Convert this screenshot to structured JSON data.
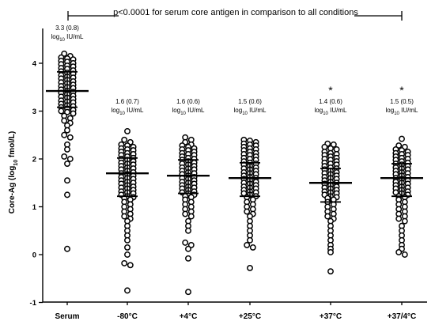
{
  "chart_data": {
    "type": "scatter",
    "title": "",
    "ylabel_main": "Core-Ag (log",
    "ylabel_sub": "10",
    "ylabel_unit": " fmol/L)",
    "ylim": [
      -1,
      4.3
    ],
    "yticks": [
      "-1",
      "0",
      "1",
      "2",
      "3",
      "4"
    ],
    "categories": [
      "Serum",
      "-80°C",
      "+4°C",
      "+25°C",
      "+37°C",
      "+37/4°C"
    ],
    "significance_text": "p<0.0001 for serum core antigen in comparison to all conditions",
    "annotations": [
      {
        "line1": "3.3 (0.8)",
        "log": "log",
        "sub": "10",
        "unit": " IU/mL",
        "star": ""
      },
      {
        "line1": "1.6 (0.7)",
        "log": "log",
        "sub": "10",
        "unit": " IU/mL",
        "star": ""
      },
      {
        "line1": "1.6 (0.6)",
        "log": "log",
        "sub": "10",
        "unit": " IU/mL",
        "star": ""
      },
      {
        "line1": "1.5 (0.6)",
        "log": "log",
        "sub": "10",
        "unit": " IU/mL",
        "star": ""
      },
      {
        "line1": "1.4 (0.6)",
        "log": "log",
        "sub": "10",
        "unit": " IU/mL",
        "star": "*"
      },
      {
        "line1": "1.5 (0.5)",
        "log": "log",
        "sub": "10",
        "unit": " IU/mL",
        "star": "*"
      }
    ],
    "summary": [
      {
        "median": 3.42,
        "q1": 3.08,
        "q3": 3.82
      },
      {
        "median": 1.7,
        "q1": 1.22,
        "q3": 2.02
      },
      {
        "median": 1.65,
        "q1": 1.28,
        "q3": 1.98
      },
      {
        "median": 1.6,
        "q1": 1.22,
        "q3": 1.92
      },
      {
        "median": 1.5,
        "q1": 1.1,
        "q3": 1.8
      },
      {
        "median": 1.6,
        "q1": 1.22,
        "q3": 1.9
      }
    ],
    "series": [
      {
        "values": [
          4.2,
          4.15,
          4.12,
          4.1,
          4.08,
          4.05,
          4.03,
          4.0,
          3.98,
          3.95,
          3.93,
          3.9,
          3.88,
          3.85,
          3.83,
          3.8,
          3.78,
          3.75,
          3.72,
          3.7,
          3.68,
          3.65,
          3.62,
          3.6,
          3.58,
          3.55,
          3.52,
          3.5,
          3.48,
          3.45,
          3.42,
          3.4,
          3.38,
          3.35,
          3.32,
          3.3,
          3.28,
          3.25,
          3.22,
          3.2,
          3.18,
          3.15,
          3.12,
          3.1,
          3.08,
          3.05,
          3.02,
          3.0,
          2.98,
          2.95,
          2.9,
          2.85,
          2.8,
          2.75,
          2.7,
          2.6,
          2.5,
          2.45,
          2.3,
          2.2,
          2.05,
          2.0,
          1.9,
          1.55,
          1.25,
          0.12
        ]
      },
      {
        "values": [
          2.58,
          2.4,
          2.35,
          2.3,
          2.28,
          2.25,
          2.22,
          2.2,
          2.18,
          2.15,
          2.12,
          2.1,
          2.08,
          2.05,
          2.02,
          2.0,
          1.98,
          1.95,
          1.92,
          1.9,
          1.88,
          1.85,
          1.82,
          1.8,
          1.78,
          1.75,
          1.72,
          1.7,
          1.68,
          1.65,
          1.62,
          1.6,
          1.58,
          1.55,
          1.52,
          1.5,
          1.48,
          1.45,
          1.42,
          1.4,
          1.38,
          1.35,
          1.32,
          1.3,
          1.28,
          1.25,
          1.22,
          1.2,
          1.18,
          1.15,
          1.1,
          1.05,
          1.0,
          0.95,
          0.9,
          0.85,
          0.8,
          0.75,
          0.7,
          0.6,
          0.5,
          0.4,
          0.3,
          0.15,
          0.0,
          -0.18,
          -0.22,
          -0.75
        ]
      },
      {
        "values": [
          2.45,
          2.4,
          2.35,
          2.3,
          2.28,
          2.25,
          2.22,
          2.2,
          2.18,
          2.15,
          2.12,
          2.1,
          2.08,
          2.05,
          2.02,
          2.0,
          1.98,
          1.95,
          1.92,
          1.9,
          1.88,
          1.85,
          1.82,
          1.8,
          1.78,
          1.75,
          1.72,
          1.7,
          1.68,
          1.65,
          1.62,
          1.6,
          1.58,
          1.55,
          1.52,
          1.5,
          1.48,
          1.45,
          1.42,
          1.4,
          1.38,
          1.35,
          1.32,
          1.3,
          1.28,
          1.25,
          1.22,
          1.2,
          1.15,
          1.1,
          1.05,
          1.0,
          0.95,
          0.9,
          0.85,
          0.8,
          0.7,
          0.6,
          0.5,
          0.25,
          0.2,
          0.12,
          -0.08,
          -0.78
        ]
      },
      {
        "values": [
          2.4,
          2.38,
          2.35,
          2.32,
          2.3,
          2.28,
          2.25,
          2.22,
          2.2,
          2.18,
          2.15,
          2.12,
          2.1,
          2.08,
          2.05,
          2.02,
          2.0,
          1.98,
          1.95,
          1.92,
          1.9,
          1.88,
          1.85,
          1.82,
          1.8,
          1.78,
          1.75,
          1.72,
          1.7,
          1.68,
          1.65,
          1.62,
          1.6,
          1.58,
          1.55,
          1.52,
          1.5,
          1.48,
          1.45,
          1.42,
          1.4,
          1.38,
          1.35,
          1.32,
          1.3,
          1.28,
          1.25,
          1.22,
          1.2,
          1.15,
          1.1,
          1.05,
          1.0,
          0.95,
          0.9,
          0.85,
          0.8,
          0.7,
          0.6,
          0.5,
          0.4,
          0.3,
          0.2,
          0.15,
          -0.28
        ]
      },
      {
        "values": [
          2.32,
          2.3,
          2.25,
          2.22,
          2.2,
          2.15,
          2.12,
          2.1,
          2.08,
          2.05,
          2.02,
          2.0,
          1.98,
          1.95,
          1.92,
          1.9,
          1.88,
          1.85,
          1.82,
          1.8,
          1.78,
          1.75,
          1.72,
          1.7,
          1.68,
          1.65,
          1.62,
          1.6,
          1.58,
          1.55,
          1.52,
          1.5,
          1.48,
          1.45,
          1.42,
          1.4,
          1.38,
          1.35,
          1.32,
          1.3,
          1.28,
          1.25,
          1.22,
          1.2,
          1.18,
          1.15,
          1.1,
          1.05,
          1.0,
          0.95,
          0.9,
          0.85,
          0.8,
          0.75,
          0.7,
          0.6,
          0.5,
          0.4,
          0.3,
          0.2,
          0.12,
          0.05,
          -0.35
        ]
      },
      {
        "values": [
          2.42,
          2.28,
          2.25,
          2.2,
          2.18,
          2.15,
          2.12,
          2.1,
          2.08,
          2.05,
          2.02,
          2.0,
          1.98,
          1.95,
          1.92,
          1.9,
          1.88,
          1.85,
          1.82,
          1.8,
          1.78,
          1.75,
          1.72,
          1.7,
          1.68,
          1.65,
          1.62,
          1.6,
          1.58,
          1.55,
          1.52,
          1.5,
          1.48,
          1.45,
          1.42,
          1.4,
          1.38,
          1.35,
          1.32,
          1.3,
          1.28,
          1.25,
          1.22,
          1.2,
          1.15,
          1.1,
          1.05,
          1.0,
          0.95,
          0.9,
          0.85,
          0.8,
          0.75,
          0.7,
          0.6,
          0.5,
          0.4,
          0.3,
          0.2,
          0.12,
          0.05,
          0.0
        ]
      }
    ]
  }
}
